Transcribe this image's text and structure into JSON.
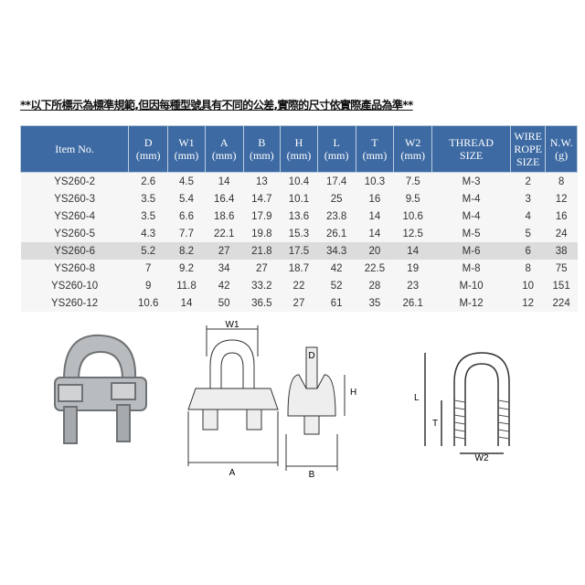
{
  "title": "**以下所標示為標準規範,但因每種型號具有不同的公差,實際的尺寸依實際產品為準**",
  "header_color": "#3d6aa3",
  "columns": [
    {
      "l1": "Item No.",
      "l2": ""
    },
    {
      "l1": "D",
      "l2": "(mm)"
    },
    {
      "l1": "W1",
      "l2": "(mm)"
    },
    {
      "l1": "A",
      "l2": "(mm)"
    },
    {
      "l1": "B",
      "l2": "(mm)"
    },
    {
      "l1": "H",
      "l2": "(mm)"
    },
    {
      "l1": "L",
      "l2": "(mm)"
    },
    {
      "l1": "T",
      "l2": "(mm)"
    },
    {
      "l1": "W2",
      "l2": "(mm)"
    },
    {
      "l1": "THREAD",
      "l2": "SIZE"
    },
    {
      "l1": "WIRE ROPE",
      "l2": "SIZE"
    },
    {
      "l1": "N.W.",
      "l2": "(g)"
    }
  ],
  "rows": [
    [
      "YS260-2",
      "2.6",
      "4.5",
      "14",
      "13",
      "10.4",
      "17.4",
      "10.3",
      "7.5",
      "M-3",
      "2",
      "8"
    ],
    [
      "YS260-3",
      "3.5",
      "5.4",
      "16.4",
      "14.7",
      "10.1",
      "25",
      "16",
      "9.5",
      "M-4",
      "3",
      "12"
    ],
    [
      "YS260-4",
      "3.5",
      "6.6",
      "18.6",
      "17.9",
      "13.6",
      "23.8",
      "14",
      "10.6",
      "M-4",
      "4",
      "16"
    ],
    [
      "YS260-5",
      "4.3",
      "7.7",
      "22.1",
      "19.8",
      "15.3",
      "26.1",
      "14",
      "12.5",
      "M-5",
      "5",
      "24"
    ],
    [
      "YS260-6",
      "5.2",
      "8.2",
      "27",
      "21.8",
      "17.5",
      "34.3",
      "20",
      "14",
      "M-6",
      "6",
      "38"
    ],
    [
      "YS260-8",
      "7",
      "9.2",
      "34",
      "27",
      "18.7",
      "42",
      "22.5",
      "19",
      "M-8",
      "8",
      "75"
    ],
    [
      "YS260-10",
      "9",
      "11.8",
      "42",
      "33.2",
      "22",
      "52",
      "28",
      "23",
      "M-10",
      "10",
      "151"
    ],
    [
      "YS260-12",
      "10.6",
      "14",
      "50",
      "36.5",
      "27",
      "61",
      "35",
      "26.1",
      "M-12",
      "12",
      "224"
    ]
  ],
  "diagram_labels": {
    "w1": "W1",
    "a": "A",
    "d": "D",
    "h": "H",
    "b": "B",
    "l": "L",
    "t": "T",
    "w2": "W2"
  }
}
